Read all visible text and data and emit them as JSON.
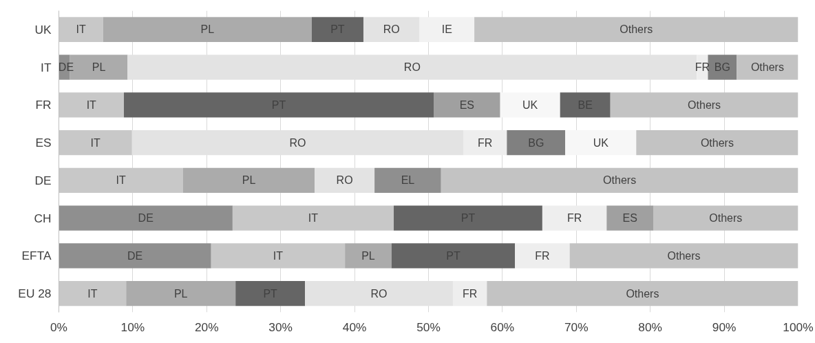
{
  "chart_data": {
    "type": "bar",
    "orientation": "horizontal",
    "stacked": true,
    "categories": [
      "UK",
      "IT",
      "FR",
      "ES",
      "DE",
      "CH",
      "EFTA",
      "EU 28"
    ],
    "series": [
      {
        "values": [
          6,
          1.5,
          8.8,
          9.9,
          16.8,
          23.5,
          20.6,
          9.1
        ],
        "colors": [
          "#c8c8c8",
          "#8f8f8f",
          "#c8c8c8",
          "#c8c8c8",
          "#c8c8c8",
          "#8f8f8f",
          "#8f8f8f",
          "#c8c8c8"
        ],
        "value_labels": [
          "IT",
          "DE",
          "IT",
          "IT",
          "IT",
          "DE",
          "DE",
          "IT"
        ]
      },
      {
        "values": [
          28.2,
          7.8,
          41.9,
          44.8,
          17.8,
          21.8,
          18.1,
          14.8
        ],
        "colors": [
          "#ababab",
          "#ababab",
          "#656565",
          "#e3e3e3",
          "#ababab",
          "#c8c8c8",
          "#c8c8c8",
          "#ababab"
        ],
        "value_labels": [
          "PL",
          "PL",
          "PT",
          "RO",
          "PL",
          "IT",
          "IT",
          "PL"
        ]
      },
      {
        "values": [
          7,
          77,
          9,
          5.9,
          8.1,
          20.1,
          6.3,
          9.4
        ],
        "colors": [
          "#656565",
          "#e3e3e3",
          "#a0a0a0",
          "#eeeeee",
          "#e3e3e3",
          "#656565",
          "#ababab",
          "#656565"
        ],
        "value_labels": [
          "PT",
          "RO",
          "ES",
          "FR",
          "RO",
          "PT",
          "PL",
          "PT"
        ]
      },
      {
        "values": [
          7.6,
          1.5,
          8.1,
          7.9,
          9,
          8.7,
          16.7,
          20
        ],
        "colors": [
          "#e3e3e3",
          "#eeeeee",
          "#f7f7f7",
          "#808080",
          "#8f8f8f",
          "#eeeeee",
          "#656565",
          "#e3e3e3"
        ],
        "value_labels": [
          "RO",
          "FR",
          "UK",
          "BG",
          "EL",
          "FR",
          "PT",
          "RO"
        ]
      },
      {
        "values": [
          7.4,
          3.9,
          6.8,
          9.6,
          48.3,
          6.3,
          7.4,
          4.6
        ],
        "colors": [
          "#f2f2f2",
          "#808080",
          "#656565",
          "#f7f7f7",
          "#c3c3c3",
          "#a0a0a0",
          "#eeeeee",
          "#eeeeee"
        ],
        "value_labels": [
          "IE",
          "BG",
          "BE",
          "UK",
          "Others",
          "ES",
          "FR",
          "FR"
        ]
      },
      {
        "values": [
          43.8,
          8.3,
          25.4,
          21.9,
          null,
          19.6,
          30.9,
          42.1
        ],
        "colors": [
          "#c3c3c3",
          "#c3c3c3",
          "#c3c3c3",
          "#c3c3c3",
          "#c3c3c3",
          "#c3c3c3",
          "#c3c3c3",
          "#c3c3c3"
        ],
        "value_labels": [
          "Others",
          "Others",
          "Others",
          "Others",
          null,
          "Others",
          "Others",
          "Others"
        ]
      }
    ],
    "xlim": [
      0,
      100
    ],
    "xticks": [
      {
        "value": 0,
        "label": "0%"
      },
      {
        "value": 10,
        "label": "10%"
      },
      {
        "value": 20,
        "label": "20%"
      },
      {
        "value": 30,
        "label": "30%"
      },
      {
        "value": 40,
        "label": "40%"
      },
      {
        "value": 50,
        "label": "50%"
      },
      {
        "value": 60,
        "label": "60%"
      },
      {
        "value": 70,
        "label": "70%"
      },
      {
        "value": 80,
        "label": "80%"
      },
      {
        "value": 90,
        "label": "90%"
      },
      {
        "value": 100,
        "label": "100%"
      }
    ],
    "grid": "x"
  }
}
